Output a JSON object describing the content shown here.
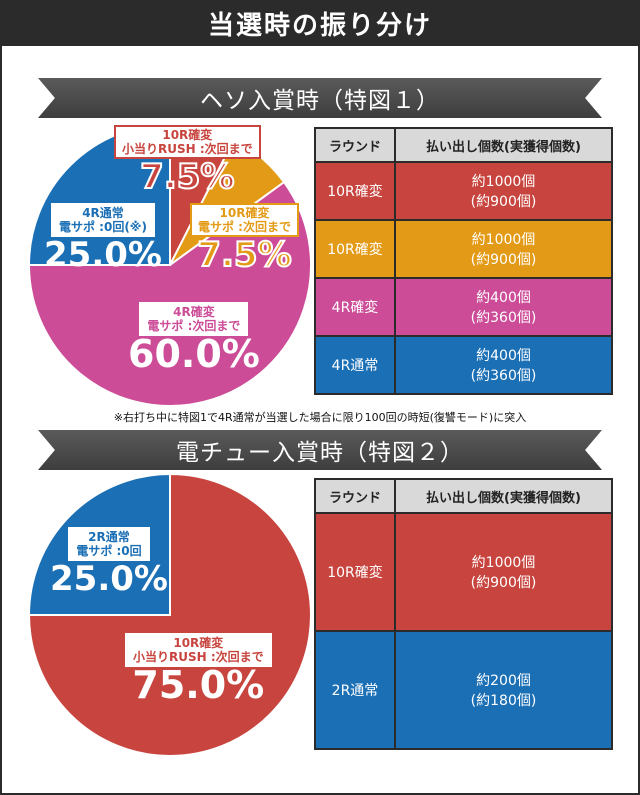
{
  "page_title": "当選時の振り分け",
  "sections": [
    {
      "heading": "ヘソ入賞時（特図１）",
      "table": {
        "headers": [
          "ラウンド",
          "払い出し個数(実獲得個数)"
        ],
        "rows": [
          {
            "round": "10R確変",
            "payout": "約1000個",
            "actual": "(約900個)",
            "color": "#c8453f"
          },
          {
            "round": "10R確変",
            "payout": "約1000個",
            "actual": "(約900個)",
            "color": "#e39a16"
          },
          {
            "round": "4R確変",
            "payout": "約400個",
            "actual": "(約360個)",
            "color": "#cc4c97"
          },
          {
            "round": "4R通常",
            "payout": "約400個",
            "actual": "(約360個)",
            "color": "#1b6fb5"
          }
        ]
      },
      "labels": {
        "red": {
          "line1": "10R確変",
          "line2": "小当りRUSH :次回まで",
          "pct": "7.5%"
        },
        "gold": {
          "line1": "10R確変",
          "line2": "電サポ :次回まで",
          "pct": "7.5%"
        },
        "blue": {
          "line1": "4R通常",
          "line2": "電サポ :0回(※)",
          "pct": "25.0%"
        },
        "pink": {
          "line1": "4R確変",
          "line2": "電サポ :次回まで",
          "pct": "60.0%"
        }
      }
    },
    {
      "heading": "電チュー入賞時（特図２）",
      "table": {
        "headers": [
          "ラウンド",
          "払い出し個数(実獲得個数)"
        ],
        "rows": [
          {
            "round": "10R確変",
            "payout": "約1000個",
            "actual": "(約900個)",
            "color": "#c8453f"
          },
          {
            "round": "2R通常",
            "payout": "約200個",
            "actual": "(約180個)",
            "color": "#1b6fb5"
          }
        ]
      },
      "labels": {
        "blue": {
          "line1": "2R通常",
          "line2": "電サポ :0回",
          "pct": "25.0%"
        },
        "red": {
          "line1": "10R確変",
          "line2": "小当りRUSH :次回まで",
          "pct": "75.0%"
        }
      }
    }
  ],
  "footnote": "※右打ち中に特図1で4R通常が当選した場合に限り100回の時短(復讐モード)に突入",
  "chart_data": [
    {
      "type": "pie",
      "title": "ヘソ入賞時（特図１）",
      "categories": [
        "10R確変 小当りRUSH",
        "10R確変 電サポ",
        "4R確変",
        "4R通常"
      ],
      "values": [
        7.5,
        7.5,
        60.0,
        25.0
      ],
      "colors": [
        "#c8453f",
        "#e39a16",
        "#cc4c97",
        "#1b6fb5"
      ]
    },
    {
      "type": "pie",
      "title": "電チュー入賞時（特図２）",
      "categories": [
        "10R確変",
        "2R通常"
      ],
      "values": [
        75.0,
        25.0
      ],
      "colors": [
        "#c8453f",
        "#1b6fb5"
      ]
    }
  ]
}
